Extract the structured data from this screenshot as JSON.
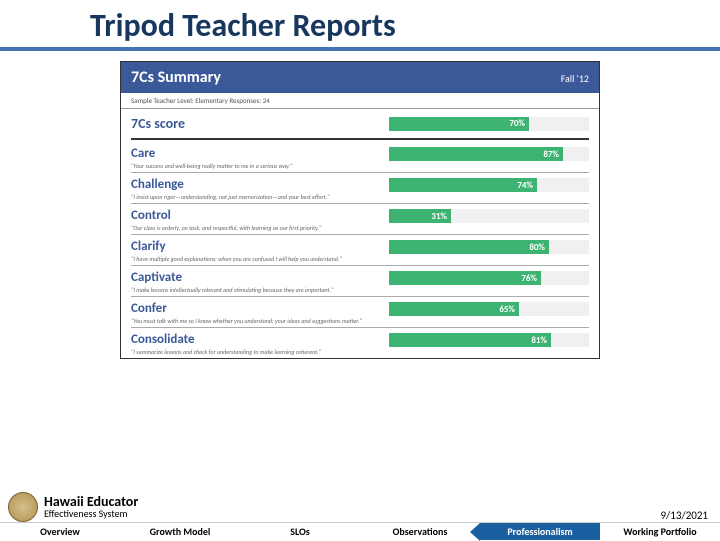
{
  "title": "Tripod Teacher Reports",
  "summary": {
    "header_left": "7Cs Summary",
    "header_right": "Fall '12",
    "meta": "Sample Teacher    Level: Elementary    Responses: 24",
    "score_label": "7Cs score",
    "score_value": 70,
    "score_text": "70%"
  },
  "categories": [
    {
      "name": "Care",
      "value": 87,
      "text": "87%",
      "desc": "\"Your success and well-being really matter to me in a serious way.\""
    },
    {
      "name": "Challenge",
      "value": 74,
      "text": "74%",
      "desc": "\"I insist upon rigor—understanding, not just memorization—and your best effort.\""
    },
    {
      "name": "Control",
      "value": 31,
      "text": "31%",
      "desc": "\"Our class is orderly, on task, and respectful, with learning as our first priority.\""
    },
    {
      "name": "Clarify",
      "value": 80,
      "text": "80%",
      "desc": "\"I have multiple good explanations; when you are confused I will help you understand.\""
    },
    {
      "name": "Captivate",
      "value": 76,
      "text": "76%",
      "desc": "\"I make lessons intellectually relevant and stimulating because they are important.\""
    },
    {
      "name": "Confer",
      "value": 65,
      "text": "65%",
      "desc": "\"You must talk with me so I know whether you understand; your ideas and suggestions matter.\""
    },
    {
      "name": "Consolidate",
      "value": 81,
      "text": "81%",
      "desc": "\"I summarize lessons and check for understanding to make learning coherent.\""
    }
  ],
  "logo": {
    "line1": "Hawaii Educator",
    "line2": "Effectiveness System"
  },
  "date": "9/13/2021",
  "tabs": [
    {
      "label": "Overview",
      "active": false
    },
    {
      "label": "Growth Model",
      "active": false
    },
    {
      "label": "SLOs",
      "active": false
    },
    {
      "label": "Observations",
      "active": false
    },
    {
      "label": "Professionalism",
      "active": true
    },
    {
      "label": "Working Portfolio",
      "active": false
    }
  ],
  "colors": {
    "bar_fill": "#3cb371",
    "header_bg": "#3b5998",
    "accent": "#1a5fa0"
  }
}
